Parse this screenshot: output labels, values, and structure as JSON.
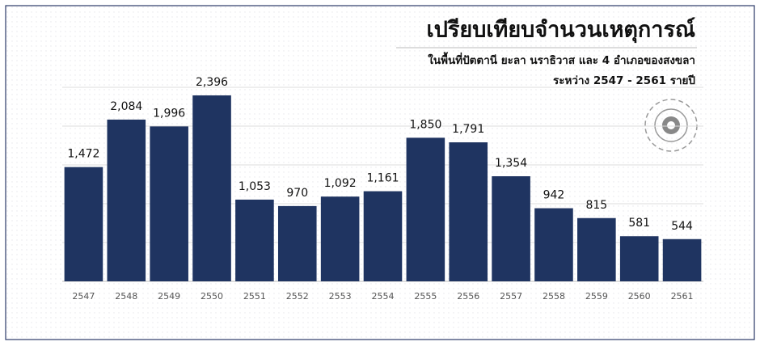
{
  "chart_data": {
    "type": "bar",
    "title": "เปรียบเทียบจำนวนเหตุการณ์",
    "subtitle": [
      "ในพื้นที่ปัตตานี ยะลา นราธิวาส และ 4 อำเภอของสงขลา",
      "ระหว่าง 2547 -  2561 รายปี"
    ],
    "categories": [
      "2547",
      "2548",
      "2549",
      "2550",
      "2551",
      "2552",
      "2553",
      "2554",
      "2555",
      "2556",
      "2557",
      "2558",
      "2559",
      "2560",
      "2561"
    ],
    "values": [
      1472,
      2084,
      1996,
      2396,
      1053,
      970,
      1092,
      1161,
      1850,
      1791,
      1354,
      942,
      815,
      581,
      544
    ],
    "value_labels": [
      "1,472",
      "2,084",
      "1,996",
      "2,396",
      "1,053",
      "970",
      "1,092",
      "1,161",
      "1,850",
      "1,791",
      "1,354",
      "942",
      "815",
      "581",
      "544"
    ],
    "color": "#1f3461",
    "ylim": [
      0,
      3000
    ],
    "yticks": [
      0,
      500,
      1000,
      1500,
      2000,
      2500
    ],
    "grid": true
  }
}
